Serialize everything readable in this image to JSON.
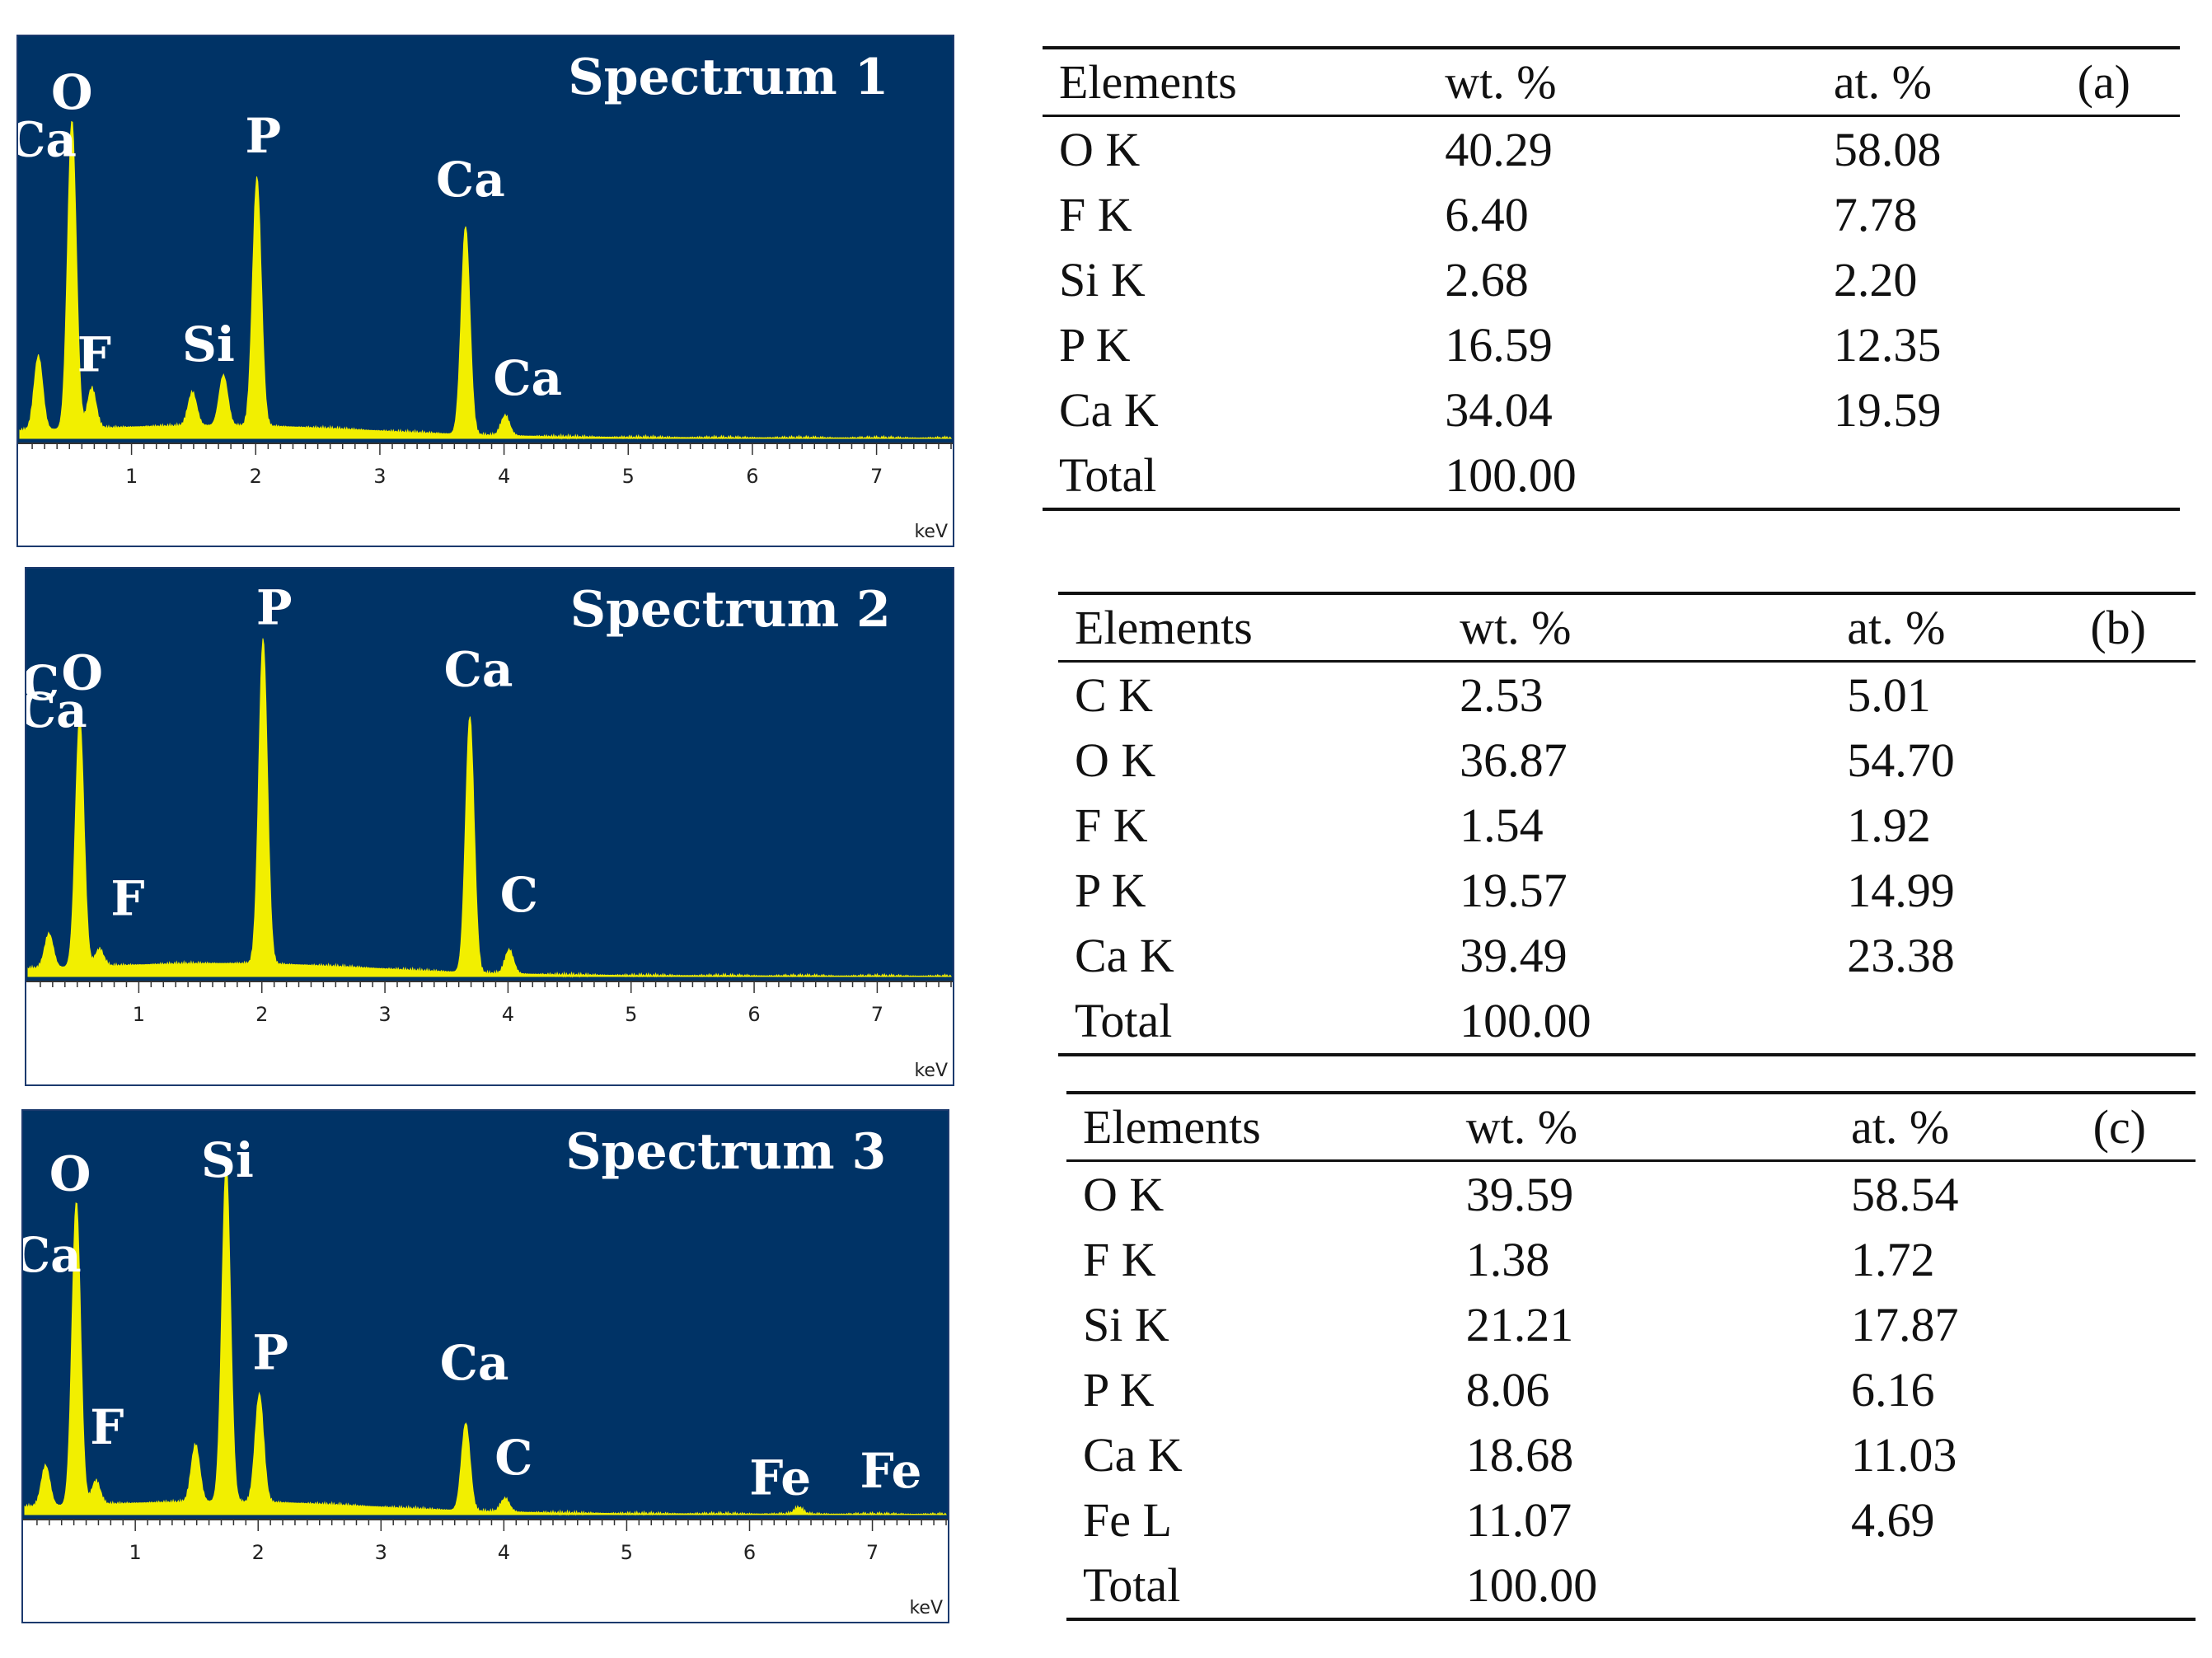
{
  "chart_data": [
    {
      "type": "spectrum",
      "title": "Spectrum 1",
      "xunit": "keV",
      "xticks": [
        1,
        2,
        3,
        4,
        5,
        6,
        7
      ],
      "xlim": [
        0.1,
        7.6
      ],
      "peaks": [
        {
          "x": 0.25,
          "y": 0.22
        },
        {
          "x": 0.52,
          "y": 0.92
        },
        {
          "x": 0.68,
          "y": 0.12
        },
        {
          "x": 1.49,
          "y": 0.1
        },
        {
          "x": 1.74,
          "y": 0.15
        },
        {
          "x": 2.01,
          "y": 0.74
        },
        {
          "x": 3.69,
          "y": 0.62
        },
        {
          "x": 4.01,
          "y": 0.06
        }
      ],
      "labels": [
        {
          "text": "O",
          "x": 0.52
        },
        {
          "text": "Ca",
          "x": 0.28
        },
        {
          "text": "F",
          "x": 0.7
        },
        {
          "text": "Si",
          "x": 1.62
        },
        {
          "text": "P",
          "x": 2.06
        },
        {
          "text": "Ca",
          "x": 3.73
        },
        {
          "text": "Ca",
          "x": 4.19
        }
      ]
    },
    {
      "type": "spectrum",
      "title": "Spectrum 2",
      "xunit": "keV",
      "xticks": [
        1,
        2,
        3,
        4,
        5,
        6,
        7
      ],
      "xlim": [
        0.1,
        7.6
      ],
      "peaks": [
        {
          "x": 0.27,
          "y": 0.1
        },
        {
          "x": 0.52,
          "y": 0.73
        },
        {
          "x": 0.68,
          "y": 0.05
        },
        {
          "x": 2.01,
          "y": 0.95
        },
        {
          "x": 3.69,
          "y": 0.75
        },
        {
          "x": 4.01,
          "y": 0.07
        }
      ],
      "labels": [
        {
          "text": "P",
          "x": 2.1
        },
        {
          "text": "O",
          "x": 0.54
        },
        {
          "text": "C",
          "x": 0.2
        },
        {
          "text": "Ca",
          "x": 0.3
        },
        {
          "text": "F",
          "x": 0.91
        },
        {
          "text": "Ca",
          "x": 3.76
        },
        {
          "text": "C",
          "x": 4.09
        }
      ]
    },
    {
      "type": "spectrum",
      "title": "Spectrum 3",
      "xunit": "keV",
      "xticks": [
        1,
        2,
        3,
        4,
        5,
        6,
        7
      ],
      "xlim": [
        0.1,
        7.6
      ],
      "peaks": [
        {
          "x": 0.27,
          "y": 0.12
        },
        {
          "x": 0.52,
          "y": 0.9
        },
        {
          "x": 0.68,
          "y": 0.07
        },
        {
          "x": 1.49,
          "y": 0.17
        },
        {
          "x": 1.74,
          "y": 1.0
        },
        {
          "x": 2.01,
          "y": 0.32
        },
        {
          "x": 3.69,
          "y": 0.26
        },
        {
          "x": 4.01,
          "y": 0.04
        },
        {
          "x": 6.4,
          "y": 0.02
        }
      ],
      "labels": [
        {
          "text": "O",
          "x": 0.47
        },
        {
          "text": "Si",
          "x": 1.75
        },
        {
          "text": "Ca",
          "x": 0.28
        },
        {
          "text": "P",
          "x": 2.1
        },
        {
          "text": "F",
          "x": 0.77
        },
        {
          "text": "Ca",
          "x": 3.76
        },
        {
          "text": "C",
          "x": 4.08
        },
        {
          "text": "Fe",
          "x": 6.25
        },
        {
          "text": "Fe",
          "x": 7.15
        }
      ]
    }
  ],
  "tables": [
    {
      "tag": "(a)",
      "headers": [
        "Elements",
        "wt. %",
        "at. %"
      ],
      "rows": [
        [
          "O K",
          "40.29",
          "58.08"
        ],
        [
          "F K",
          "6.40",
          "7.78"
        ],
        [
          "Si K",
          "2.68",
          "2.20"
        ],
        [
          "P K",
          "16.59",
          "12.35"
        ],
        [
          "Ca K",
          "34.04",
          "19.59"
        ],
        [
          "Total",
          "100.00",
          ""
        ]
      ]
    },
    {
      "tag": "(b)",
      "headers": [
        "Elements",
        "wt. %",
        "at. %"
      ],
      "rows": [
        [
          "C K",
          "2.53",
          "5.01"
        ],
        [
          "O K",
          "36.87",
          "54.70"
        ],
        [
          "F K",
          "1.54",
          "1.92"
        ],
        [
          "P K",
          "19.57",
          "14.99"
        ],
        [
          "Ca K",
          "39.49",
          "23.38"
        ],
        [
          "Total",
          "100.00",
          ""
        ]
      ]
    },
    {
      "tag": "(c)",
      "headers": [
        "Elements",
        "wt. %",
        "at. %"
      ],
      "rows": [
        [
          "O K",
          "39.59",
          "58.54"
        ],
        [
          "F K",
          "1.38",
          "1.72"
        ],
        [
          "Si K",
          "21.21",
          "17.87"
        ],
        [
          "P K",
          "8.06",
          "6.16"
        ],
        [
          "Ca K",
          "18.68",
          "11.03"
        ],
        [
          "Fe L",
          "11.07",
          "4.69"
        ],
        [
          "Total",
          "100.00",
          ""
        ]
      ]
    }
  ],
  "colors": {
    "plot_bg": "#003366",
    "spectrum_fill": "#f2ef00"
  }
}
